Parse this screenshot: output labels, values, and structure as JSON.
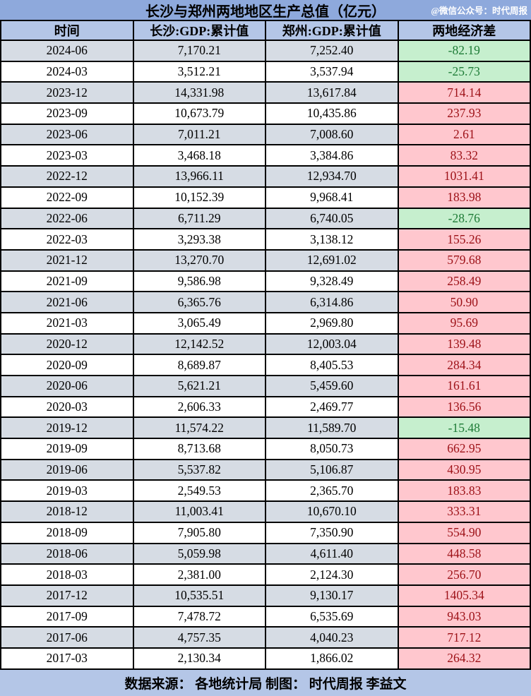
{
  "header": {
    "title": "长沙与郑州两地地区生产总值（亿元）",
    "watermark": "@微信公众号：时代周报"
  },
  "footer": {
    "text": "数据来源： 各地统计局 制图： 时代周报 李益文"
  },
  "colors": {
    "title_bar_bg": "#8EA9DC",
    "header_row_bg": "#B4C6E7",
    "alt_row_bg": "#D6DCE4",
    "row_bg": "#FFFFFF",
    "positive_diff_bg": "#FFC7CE",
    "positive_diff_text": "#9C1016",
    "negative_diff_bg": "#C6EFCE",
    "negative_diff_text": "#1D7B36",
    "footer_bg": "#B4C6E7",
    "border": "#000000",
    "watermark_text": "#FFFFFF"
  },
  "chart_data": {
    "type": "table",
    "title": "长沙与郑州两地地区生产总值（亿元）",
    "columns": [
      "时间",
      "长沙:GDP:累计值",
      "郑州:GDP:累计值",
      "两地经济差"
    ],
    "rows": [
      [
        "2024-06",
        "7,170.21",
        "7,252.40",
        "-82.19"
      ],
      [
        "2024-03",
        "3,512.21",
        "3,537.94",
        "-25.73"
      ],
      [
        "2023-12",
        "14,331.98",
        "13,617.84",
        "714.14"
      ],
      [
        "2023-09",
        "10,673.79",
        "10,435.86",
        "237.93"
      ],
      [
        "2023-06",
        "7,011.21",
        "7,008.60",
        "2.61"
      ],
      [
        "2023-03",
        "3,468.18",
        "3,384.86",
        "83.32"
      ],
      [
        "2022-12",
        "13,966.11",
        "12,934.70",
        "1031.41"
      ],
      [
        "2022-09",
        "10,152.39",
        "9,968.41",
        "183.98"
      ],
      [
        "2022-06",
        "6,711.29",
        "6,740.05",
        "-28.76"
      ],
      [
        "2022-03",
        "3,293.38",
        "3,138.12",
        "155.26"
      ],
      [
        "2021-12",
        "13,270.70",
        "12,691.02",
        "579.68"
      ],
      [
        "2021-09",
        "9,586.98",
        "9,328.49",
        "258.49"
      ],
      [
        "2021-06",
        "6,365.76",
        "6,314.86",
        "50.90"
      ],
      [
        "2021-03",
        "3,065.49",
        "2,969.80",
        "95.69"
      ],
      [
        "2020-12",
        "12,142.52",
        "12,003.04",
        "139.48"
      ],
      [
        "2020-09",
        "8,689.87",
        "8,405.53",
        "284.34"
      ],
      [
        "2020-06",
        "5,621.21",
        "5,459.60",
        "161.61"
      ],
      [
        "2020-03",
        "2,606.33",
        "2,469.77",
        "136.56"
      ],
      [
        "2019-12",
        "11,574.22",
        "11,589.70",
        "-15.48"
      ],
      [
        "2019-09",
        "8,713.68",
        "8,050.73",
        "662.95"
      ],
      [
        "2019-06",
        "5,537.82",
        "5,106.87",
        "430.95"
      ],
      [
        "2019-03",
        "2,549.53",
        "2,365.70",
        "183.83"
      ],
      [
        "2018-12",
        "11,003.41",
        "10,670.10",
        "333.31"
      ],
      [
        "2018-09",
        "7,905.80",
        "7,350.90",
        "554.90"
      ],
      [
        "2018-06",
        "5,059.98",
        "4,611.40",
        "448.58"
      ],
      [
        "2018-03",
        "2,381.00",
        "2,124.30",
        "256.70"
      ],
      [
        "2017-12",
        "10,535.51",
        "9,130.17",
        "1405.34"
      ],
      [
        "2017-09",
        "7,478.72",
        "6,535.69",
        "943.03"
      ],
      [
        "2017-06",
        "4,757.35",
        "4,040.23",
        "717.12"
      ],
      [
        "2017-03",
        "2,130.34",
        "1,866.02",
        "264.32"
      ]
    ],
    "legend_note": "negative diff = green cell (Zhengzhou higher), positive diff = pink cell (Changsha higher)",
    "grid": true,
    "unit": "亿元"
  }
}
